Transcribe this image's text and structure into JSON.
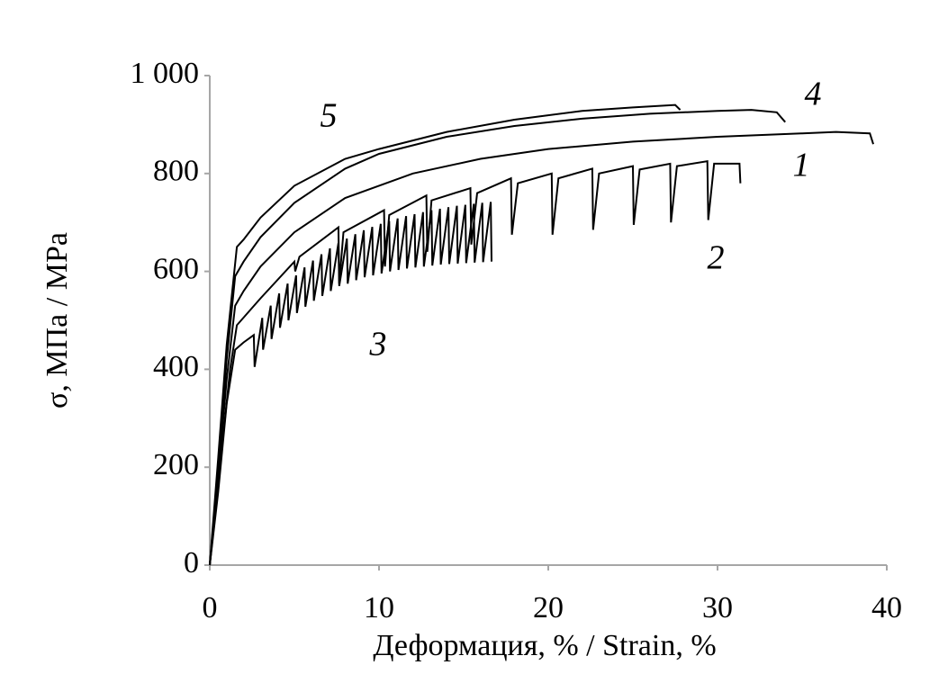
{
  "chart_data": {
    "type": "line",
    "x_label": "Деформация, % / Strain,  %",
    "y_label": "σ, МПа  / MPa",
    "xlim": [
      0,
      40
    ],
    "xticks": [
      0,
      10,
      20,
      30,
      40
    ],
    "ylim": [
      0,
      1000
    ],
    "yticks": [
      0,
      200,
      400,
      600,
      800,
      {
        "value": 1000,
        "label": "1 000"
      }
    ],
    "series": [
      {
        "name": "1",
        "color": "#000000",
        "x": [
          0,
          0.5,
          1.0,
          1.5,
          2,
          3,
          5,
          8,
          12,
          16,
          20,
          25,
          30,
          35,
          37,
          39,
          39.2
        ],
        "values": [
          0,
          180,
          380,
          530,
          560,
          610,
          680,
          750,
          800,
          830,
          850,
          865,
          875,
          882,
          885,
          882,
          860
        ]
      },
      {
        "name": "2",
        "color": "#000000",
        "x": [
          0,
          0.6,
          1.2,
          1.6,
          3,
          5,
          5.05,
          5.3,
          7.6,
          7.65,
          7.9,
          10.3,
          10.35,
          10.6,
          12.8,
          12.85,
          13.1,
          15.4,
          15.45,
          15.8,
          17.8,
          17.85,
          18.2,
          20.2,
          20.25,
          20.6,
          22.6,
          22.65,
          23.0,
          25.0,
          25.05,
          25.4,
          27.2,
          27.25,
          27.6,
          29.4,
          29.45,
          29.8,
          31.3,
          31.35
        ],
        "values": [
          0,
          200,
          400,
          490,
          545,
          620,
          600,
          630,
          690,
          575,
          680,
          725,
          610,
          715,
          755,
          640,
          745,
          770,
          655,
          760,
          790,
          675,
          780,
          800,
          675,
          790,
          810,
          685,
          800,
          815,
          695,
          808,
          820,
          700,
          815,
          825,
          705,
          820,
          820,
          780
        ]
      },
      {
        "name": "3",
        "color": "#000000",
        "x": [
          0,
          0.5,
          1.0,
          1.5,
          2.0,
          2.6,
          2.65,
          3.1,
          3.15,
          3.6,
          3.65,
          4.1,
          4.15,
          4.6,
          4.65,
          5.1,
          5.15,
          5.6,
          5.65,
          6.1,
          6.15,
          6.6,
          6.65,
          7.1,
          7.15,
          7.6,
          7.65,
          8.1,
          8.15,
          8.6,
          8.65,
          9.1,
          9.15,
          9.6,
          9.65,
          10.1,
          10.15,
          10.6,
          10.65,
          11.1,
          11.15,
          11.6,
          11.65,
          12.1,
          12.15,
          12.6,
          12.65,
          13.1,
          13.15,
          13.6,
          13.65,
          14.1,
          14.15,
          14.6,
          14.65,
          15.1,
          15.15,
          15.6,
          15.65,
          16.1,
          16.15,
          16.6,
          16.65
        ],
        "values": [
          0,
          150,
          330,
          440,
          455,
          470,
          405,
          505,
          440,
          530,
          462,
          555,
          485,
          575,
          500,
          592,
          515,
          608,
          528,
          622,
          540,
          635,
          550,
          647,
          560,
          658,
          570,
          667,
          575,
          676,
          582,
          684,
          588,
          691,
          592,
          697,
          596,
          703,
          600,
          708,
          603,
          713,
          606,
          717,
          608,
          721,
          610,
          725,
          612,
          728,
          614,
          731,
          615,
          734,
          616,
          736,
          617,
          738,
          618,
          740,
          619,
          742,
          620
        ]
      },
      {
        "name": "4",
        "color": "#000000",
        "x": [
          0,
          0.5,
          1.0,
          1.5,
          2,
          3,
          5,
          8,
          10,
          14,
          18,
          22,
          26,
          30,
          32,
          33.5,
          34
        ],
        "values": [
          0,
          200,
          420,
          590,
          620,
          670,
          740,
          810,
          840,
          875,
          897,
          912,
          922,
          928,
          930,
          925,
          905
        ]
      },
      {
        "name": "5",
        "color": "#000000",
        "x": [
          0,
          0.5,
          1.0,
          1.6,
          2,
          3,
          5,
          8,
          10,
          14,
          18,
          22,
          25,
          27.5,
          27.8
        ],
        "values": [
          0,
          220,
          450,
          650,
          665,
          710,
          775,
          830,
          850,
          885,
          910,
          928,
          935,
          940,
          930
        ]
      }
    ]
  }
}
